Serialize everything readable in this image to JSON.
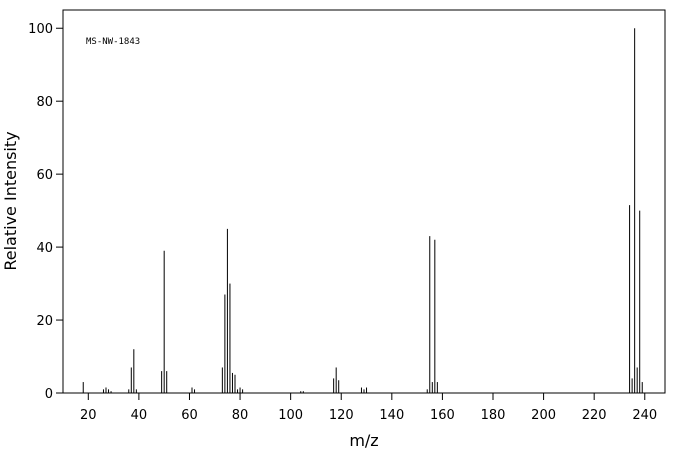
{
  "chart_data": {
    "type": "stem",
    "annotation": "MS-NW-1843",
    "xlabel": "m/z",
    "ylabel": "Relative Intensity",
    "color": "#000000",
    "x": [
      18,
      26,
      27,
      28,
      29,
      36,
      37,
      38,
      39,
      49,
      50,
      51,
      61,
      62,
      73,
      74,
      75,
      76,
      77,
      78,
      79,
      80,
      81,
      104,
      105,
      117,
      118,
      119,
      128,
      129,
      130,
      154,
      155,
      156,
      157,
      158,
      234,
      235,
      236,
      237,
      238,
      239
    ],
    "values": [
      3,
      1,
      1.5,
      1,
      0.5,
      1,
      7,
      12,
      1,
      6,
      39,
      6,
      1.5,
      1,
      7,
      27,
      45,
      30,
      5.5,
      5,
      1,
      1.5,
      1,
      0.5,
      0.5,
      4,
      7,
      3.5,
      1.5,
      1,
      1.5,
      1,
      43,
      3,
      42,
      3,
      51.5,
      4,
      100,
      7,
      50,
      3
    ],
    "xlim": [
      10,
      248
    ],
    "ylim": [
      0,
      105
    ],
    "xticks": [
      20,
      40,
      60,
      80,
      100,
      120,
      140,
      160,
      180,
      200,
      220,
      240
    ],
    "yticks": [
      0,
      20,
      40,
      60,
      80,
      100
    ]
  }
}
